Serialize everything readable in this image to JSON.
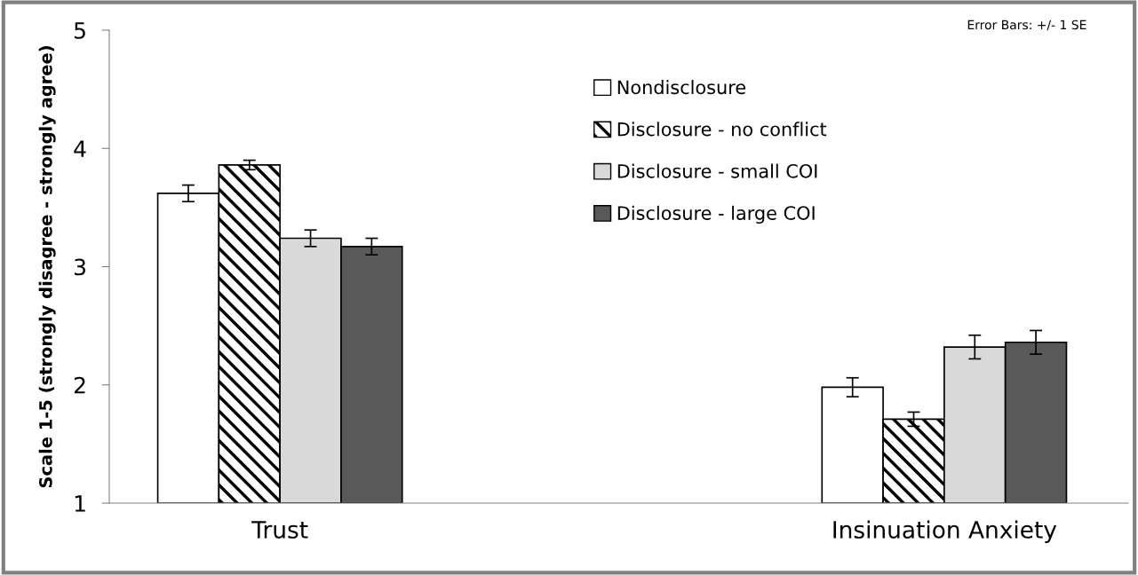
{
  "chart_data": {
    "type": "bar",
    "ylabel": "Scale 1-5 (strongly disagree - strongly agree)",
    "categories": [
      "Trust",
      "Insinuation Anxiety"
    ],
    "series": [
      {
        "name": "Nondisclosure",
        "color": "#ffffff",
        "values": [
          3.62,
          1.98
        ],
        "errors": [
          0.07,
          0.08
        ]
      },
      {
        "name": "Disclosure - no conflict",
        "color": "#000000",
        "values": [
          3.86,
          1.71
        ],
        "errors": [
          0.04,
          0.06
        ]
      },
      {
        "name": "Disclosure - small COI",
        "color": "#d9d9d9",
        "values": [
          3.24,
          2.32
        ],
        "errors": [
          0.07,
          0.1
        ]
      },
      {
        "name": "Disclosure - large COI",
        "color": "#595959",
        "values": [
          3.17,
          2.36
        ],
        "errors": [
          0.07,
          0.1
        ]
      }
    ],
    "ylim": [
      1,
      5
    ],
    "yticks": [
      1,
      2,
      3,
      4,
      5
    ],
    "grid": false,
    "legend": "top",
    "annotations": [
      "Error Bars: +/- 1 SE"
    ]
  }
}
